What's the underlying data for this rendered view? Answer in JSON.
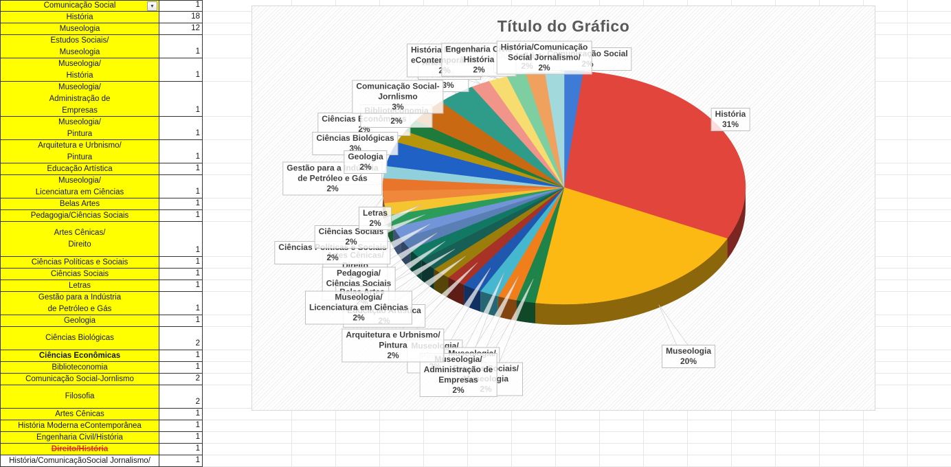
{
  "table": {
    "rows": [
      {
        "label": "Comunicação Social",
        "value": "1",
        "lines": 1,
        "filter": true
      },
      {
        "label": "História",
        "value": "18",
        "lines": 1
      },
      {
        "label": "Museologia",
        "value": "12",
        "lines": 1
      },
      {
        "label": "Estudos Sociais/\nMuseologia",
        "value": "1",
        "lines": 2
      },
      {
        "label": "Museologia/\nHistória",
        "value": "1",
        "lines": 2
      },
      {
        "label": "Museologia/\nAdministração de\nEmpresas",
        "value": "1",
        "lines": 3
      },
      {
        "label": "Museologia/\nPintura",
        "value": "1",
        "lines": 2
      },
      {
        "label": "Arquitetura e Urbnismo/\nPintura",
        "value": "1",
        "lines": 2
      },
      {
        "label": "Educação Artística",
        "value": "1",
        "lines": 1
      },
      {
        "label": "Museologia/\nLicenciatura em Ciências",
        "value": "1",
        "lines": 2
      },
      {
        "label": "Belas Artes",
        "value": "1",
        "lines": 1
      },
      {
        "label": "Pedagogia/Ciências Sociais",
        "value": "1",
        "lines": 1
      },
      {
        "label": "Artes Cênicas/\nDireito",
        "value": "1",
        "lines": 3
      },
      {
        "label": "Ciências Políticas e Sociais",
        "value": "1",
        "lines": 1
      },
      {
        "label": "Ciências Sociais",
        "value": "1",
        "lines": 1
      },
      {
        "label": "Letras",
        "value": "1",
        "lines": 1
      },
      {
        "label": "Gestão para a Indústria\nde Petróleo e Gás",
        "value": "1",
        "lines": 2
      },
      {
        "label": "Geologia",
        "value": "1",
        "lines": 1
      },
      {
        "label": "Ciências Biológicas",
        "value": "2",
        "lines": 2
      },
      {
        "label": "Ciências Econômicas",
        "value": "1",
        "lines": 1,
        "bold": true
      },
      {
        "label": "Biblioteconomia",
        "value": "1",
        "lines": 1
      },
      {
        "label": "Comunicação Social-Jornlismo",
        "value": "2",
        "lines": 1
      },
      {
        "label": "Filosofia",
        "value": "2",
        "lines": 2
      },
      {
        "label": "Artes Cênicas",
        "value": "1",
        "lines": 1
      },
      {
        "label": "História Moderna eContemporânea",
        "value": "1",
        "lines": 1
      },
      {
        "label": "Engenharia Civil/História",
        "value": "1",
        "lines": 1
      },
      {
        "label": "Direito/História",
        "value": "1",
        "lines": 1,
        "strike": true
      },
      {
        "label": "História/ComunicaçãoSocial Jornalismo/",
        "value": "1",
        "lines": 1,
        "white": true
      }
    ]
  },
  "chart_data": {
    "type": "pie",
    "title": "Título do Gráfico",
    "categories": [
      "Comunicação Social",
      "História",
      "Museologia",
      "Estudos Sociais/Museologia",
      "Museologia/História",
      "Museologia/Administração de Empresas",
      "Museologia/Pintura",
      "Arquitetura e Urbnismo/Pintura",
      "Educação Artística",
      "Museologia/Licenciatura em Ciências",
      "Belas Artes",
      "Pedagogia/Ciências Sociais",
      "Artes Cênicas/Direito",
      "Ciências Políticas e Sociais",
      "Ciências Sociais",
      "Letras",
      "Gestão para a Indústria de Petróleo e Gás",
      "Geologia",
      "Ciências Biológicas",
      "Ciências Econômicas",
      "Biblioteconomia",
      "Comunicação Social-Jornlismo",
      "Filosofia",
      "Artes Cênicas",
      "História Moderna eContemporânea",
      "Engenharia Civil/História",
      "Direito/História",
      "História/ComunicaçãoSocial Jornalismo"
    ],
    "values": [
      1,
      18,
      12,
      1,
      1,
      1,
      1,
      1,
      1,
      1,
      1,
      1,
      1,
      1,
      1,
      1,
      1,
      1,
      2,
      1,
      1,
      2,
      2,
      1,
      1,
      1,
      1,
      1
    ],
    "percents": [
      "2%",
      "31%",
      "20%",
      "2%",
      "2%",
      "2%",
      "2%",
      "2%",
      "2%",
      "2%",
      "2%",
      "2%",
      "2%",
      "2%",
      "2%",
      "2%",
      "2%",
      "2%",
      "3%",
      "2%",
      "2%",
      "3%",
      "3%",
      "2%",
      "2%",
      "2%",
      "2%",
      "2%"
    ],
    "colors": [
      "#3E7BD6",
      "#E2453C",
      "#FDB913",
      "#1E8449",
      "#EF7E1B",
      "#45B8D0",
      "#2058B0",
      "#A93226",
      "#9A7D0A",
      "#175E54",
      "#117864",
      "#5A7FB5",
      "#7295D8",
      "#2C9C5B",
      "#F4C431",
      "#F0883B",
      "#E8752A",
      "#8FD0DC",
      "#1F61C4",
      "#B7950B",
      "#1E7B3C",
      "#C96A13",
      "#2E9C89",
      "#F1948A",
      "#F7DC6F",
      "#7DCEA0",
      "#F0A15D",
      "#A2D9DC"
    ],
    "labels": [
      {
        "cat": 22,
        "lines": [
          "Filosofia"
        ],
        "pct": "3%"
      },
      {
        "cat": 23,
        "lines": [
          "Artes Cênicas"
        ],
        "pct": "2%"
      },
      {
        "cat": 24,
        "lines": [
          "História Moderna",
          "eContemporânea"
        ],
        "pct": "2%"
      },
      {
        "cat": 26,
        "lines": [
          "Direito/História"
        ],
        "pct": "2%"
      },
      {
        "cat": 25,
        "lines": [
          "Engenharia Civil/",
          "História"
        ],
        "pct": "2%"
      },
      {
        "cat": 0,
        "lines": [
          "Comunicação Social"
        ],
        "pct": "2%"
      },
      {
        "cat": 27,
        "lines": [
          "História/Comunicação",
          "Social Jornalismo/"
        ],
        "pct": "2%"
      },
      {
        "cat": 19,
        "lines": [
          "Ciências Econômicas"
        ],
        "pct": "2%"
      },
      {
        "cat": 20,
        "lines": [
          "Biblioteconomia"
        ],
        "pct": "2%"
      },
      {
        "cat": 21,
        "lines": [
          "Comunicação Social-",
          "Jornlismo"
        ],
        "pct": "3%"
      },
      {
        "cat": 16,
        "lines": [
          "Gestão para a Indústria",
          "de Petróleo e Gás"
        ],
        "pct": "2%"
      },
      {
        "cat": 18,
        "lines": [
          "Ciências Biológicas"
        ],
        "pct": "3%"
      },
      {
        "cat": 17,
        "lines": [
          "Geologia"
        ],
        "pct": "2%"
      },
      {
        "cat": 12,
        "lines": [
          "Artes Cênicas/",
          "Direito"
        ],
        "pct": "2%"
      },
      {
        "cat": 11,
        "lines": [
          "Pedagogia/",
          "Ciências Sociais"
        ],
        "pct": "2%"
      },
      {
        "cat": 10,
        "lines": [
          "Belas Artes"
        ],
        "pct": "2%"
      },
      {
        "cat": 13,
        "lines": [
          "Ciências Políticas e Sociais"
        ],
        "pct": "2%"
      },
      {
        "cat": 14,
        "lines": [
          "Ciências Sociais"
        ],
        "pct": "2%"
      },
      {
        "cat": 15,
        "lines": [
          "Letras"
        ],
        "pct": "2%"
      },
      {
        "cat": 8,
        "lines": [
          "Educação Artística"
        ],
        "pct": "2%"
      },
      {
        "cat": 6,
        "lines": [
          "Museologia/",
          "Pintura"
        ],
        "pct": "2%"
      },
      {
        "cat": 4,
        "lines": [
          "Museologia/",
          "História"
        ],
        "pct": "2%"
      },
      {
        "cat": 3,
        "lines": [
          "Estudos Sociais/",
          "Museologia"
        ],
        "pct": "2%"
      },
      {
        "cat": 5,
        "lines": [
          "Museologia/",
          "Administração de",
          "Empresas"
        ],
        "pct": "2%"
      },
      {
        "cat": 9,
        "lines": [
          "Museologia/",
          "Licenciatura em Ciências"
        ],
        "pct": "2%"
      },
      {
        "cat": 7,
        "lines": [
          "Arquitetura e Urbnismo/",
          "Pintura"
        ],
        "pct": "2%"
      },
      {
        "cat": 1,
        "lines": [
          "História"
        ],
        "pct": "31%"
      },
      {
        "cat": 2,
        "lines": [
          "Museologia"
        ],
        "pct": "20%"
      }
    ]
  }
}
